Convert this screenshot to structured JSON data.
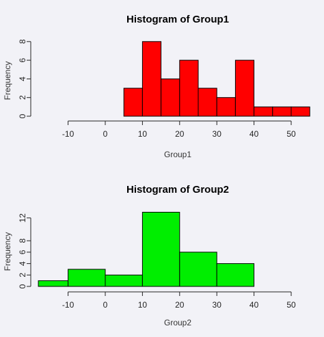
{
  "chart_data": [
    {
      "type": "bar",
      "title": "Histogram of Group1",
      "xlabel": "Group1",
      "ylabel": "Frequency",
      "color": "#ff0000",
      "xlim": [
        -10,
        55
      ],
      "ylim": [
        0,
        8
      ],
      "x_ticks": [
        -10,
        0,
        10,
        20,
        30,
        40,
        50
      ],
      "y_ticks": [
        0,
        2,
        4,
        6,
        8
      ],
      "bins": [
        {
          "start": 5,
          "end": 10,
          "count": 3
        },
        {
          "start": 10,
          "end": 15,
          "count": 8
        },
        {
          "start": 15,
          "end": 20,
          "count": 4
        },
        {
          "start": 20,
          "end": 25,
          "count": 6
        },
        {
          "start": 25,
          "end": 30,
          "count": 3
        },
        {
          "start": 30,
          "end": 35,
          "count": 2
        },
        {
          "start": 35,
          "end": 40,
          "count": 6
        },
        {
          "start": 40,
          "end": 45,
          "count": 1
        },
        {
          "start": 45,
          "end": 50,
          "count": 1
        },
        {
          "start": 50,
          "end": 55,
          "count": 1
        }
      ]
    },
    {
      "type": "bar",
      "title": "Histogram of Group2",
      "xlabel": "Group2",
      "ylabel": "Frequency",
      "color": "#00ee00",
      "xlim": [
        -18,
        50
      ],
      "ylim": [
        0,
        13
      ],
      "x_ticks": [
        -10,
        0,
        10,
        20,
        30,
        40,
        50
      ],
      "y_ticks": [
        0,
        2,
        4,
        6,
        8,
        12
      ],
      "bins": [
        {
          "start": -18,
          "end": -10,
          "count": 1
        },
        {
          "start": -10,
          "end": 0,
          "count": 3
        },
        {
          "start": 0,
          "end": 10,
          "count": 2
        },
        {
          "start": 10,
          "end": 20,
          "count": 13
        },
        {
          "start": 20,
          "end": 30,
          "count": 6
        },
        {
          "start": 30,
          "end": 40,
          "count": 4
        }
      ]
    }
  ]
}
